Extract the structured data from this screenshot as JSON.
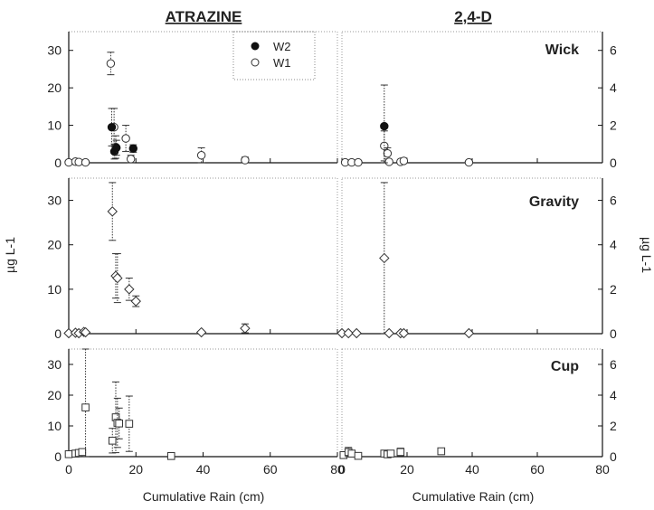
{
  "chart_data": {
    "type": "scatter",
    "columns": [
      "ATRAZINE",
      "2,4-D"
    ],
    "rows": [
      "Wick",
      "Gravity",
      "Cup"
    ],
    "xlabel": "Cumulative Rain (cm)",
    "ylabel": "µg L-1",
    "ylabel_right": "µg L-1",
    "xlim": [
      0,
      80
    ],
    "xticks": [
      "0",
      "20",
      "40",
      "60",
      "80"
    ],
    "ylim_left": [
      0,
      35
    ],
    "yticks_left": [
      "0",
      "10",
      "20",
      "30"
    ],
    "ylim_right": [
      0,
      7
    ],
    "yticks_right": [
      "0",
      "2",
      "4",
      "6"
    ],
    "legend": {
      "placement": "top-right of ATRAZINE Wick panel",
      "items": [
        "W2",
        "W1"
      ]
    },
    "panels": [
      {
        "column": "ATRAZINE",
        "row": "Wick",
        "series": [
          {
            "name": "W1",
            "marker": "circle-open",
            "x": [
              0,
              2,
              3,
              5,
              12.5,
              13.5,
              14,
              17,
              18.5,
              39.5,
              52.5
            ],
            "y": [
              0.1,
              0.3,
              0.2,
              0.1,
              26.5,
              9.5,
              4.2,
              6.5,
              1.0,
              2.0,
              0.7
            ],
            "err": [
              0,
              0,
              0,
              0,
              3,
              5,
              3,
              3.5,
              1,
              2,
              0.8
            ]
          },
          {
            "name": "W2",
            "marker": "circle-filled",
            "x": [
              12.8,
              13.6,
              14.2,
              19.2
            ],
            "y": [
              9.5,
              3.0,
              4.0,
              3.8
            ],
            "err": [
              5,
              2,
              2,
              1
            ]
          }
        ]
      },
      {
        "column": "2,4-D",
        "row": "Wick",
        "series": [
          {
            "name": "W1",
            "marker": "circle-open",
            "x": [
              1,
              3,
              5,
              13,
              14,
              14.5,
              18,
              19,
              39
            ],
            "y": [
              0.02,
              0.02,
              0.02,
              0.9,
              0.5,
              0.05,
              0.05,
              0.1,
              0.02
            ],
            "err": [
              0,
              0,
              0,
              0.8,
              0.3,
              0,
              0,
              0.15,
              0
            ]
          },
          {
            "name": "W2",
            "marker": "circle-filled",
            "x": [
              13
            ],
            "y": [
              1.95
            ],
            "err": [
              2.2
            ]
          }
        ]
      },
      {
        "column": "ATRAZINE",
        "row": "Gravity",
        "series": [
          {
            "marker": "diamond-open",
            "x": [
              0,
              2,
              3,
              4.5,
              5,
              13,
              14,
              14.5,
              18,
              20,
              39.5,
              52.5
            ],
            "y": [
              0.1,
              0.2,
              0.1,
              0.4,
              0.3,
              27.5,
              13,
              12.5,
              10,
              7.3,
              0.3,
              1.2
            ],
            "err": [
              0,
              0,
              0,
              0,
              0,
              6.5,
              5,
              5.5,
              2.5,
              1.2,
              0,
              1
            ]
          }
        ]
      },
      {
        "column": "2,4-D",
        "row": "Gravity",
        "series": [
          {
            "marker": "diamond-open",
            "x": [
              0,
              2,
              4.5,
              13,
              14.5,
              18,
              19,
              39
            ],
            "y": [
              0.02,
              0.02,
              0.02,
              3.4,
              0.02,
              0.02,
              0.02,
              0.02
            ],
            "err": [
              0,
              0,
              0,
              3.4,
              0,
              0,
              0,
              0
            ]
          }
        ]
      },
      {
        "column": "ATRAZINE",
        "row": "Cup",
        "series": [
          {
            "marker": "square-open",
            "x": [
              0,
              2,
              3,
              4,
              5,
              13,
              14,
              14.5,
              15,
              18,
              30.5
            ],
            "y": [
              0.8,
              1.0,
              1.2,
              1.5,
              16,
              5.2,
              12.8,
              11,
              10.8,
              10.7,
              0.2
            ],
            "err": [
              0,
              0,
              0,
              0,
              20,
              4,
              11.5,
              8,
              5,
              9,
              0
            ]
          }
        ]
      },
      {
        "column": "2,4-D",
        "row": "Cup",
        "series": [
          {
            "marker": "square-open",
            "x": [
              0.5,
              2,
              3,
              5,
              13,
              14,
              15,
              18,
              30.5
            ],
            "y": [
              0.1,
              0.3,
              0.2,
              0.05,
              0.2,
              0.15,
              0.2,
              0.3,
              0.35
            ],
            "err": [
              0,
              0.3,
              0,
              0,
              0,
              0,
              0,
              0.25,
              0
            ]
          }
        ]
      }
    ]
  }
}
